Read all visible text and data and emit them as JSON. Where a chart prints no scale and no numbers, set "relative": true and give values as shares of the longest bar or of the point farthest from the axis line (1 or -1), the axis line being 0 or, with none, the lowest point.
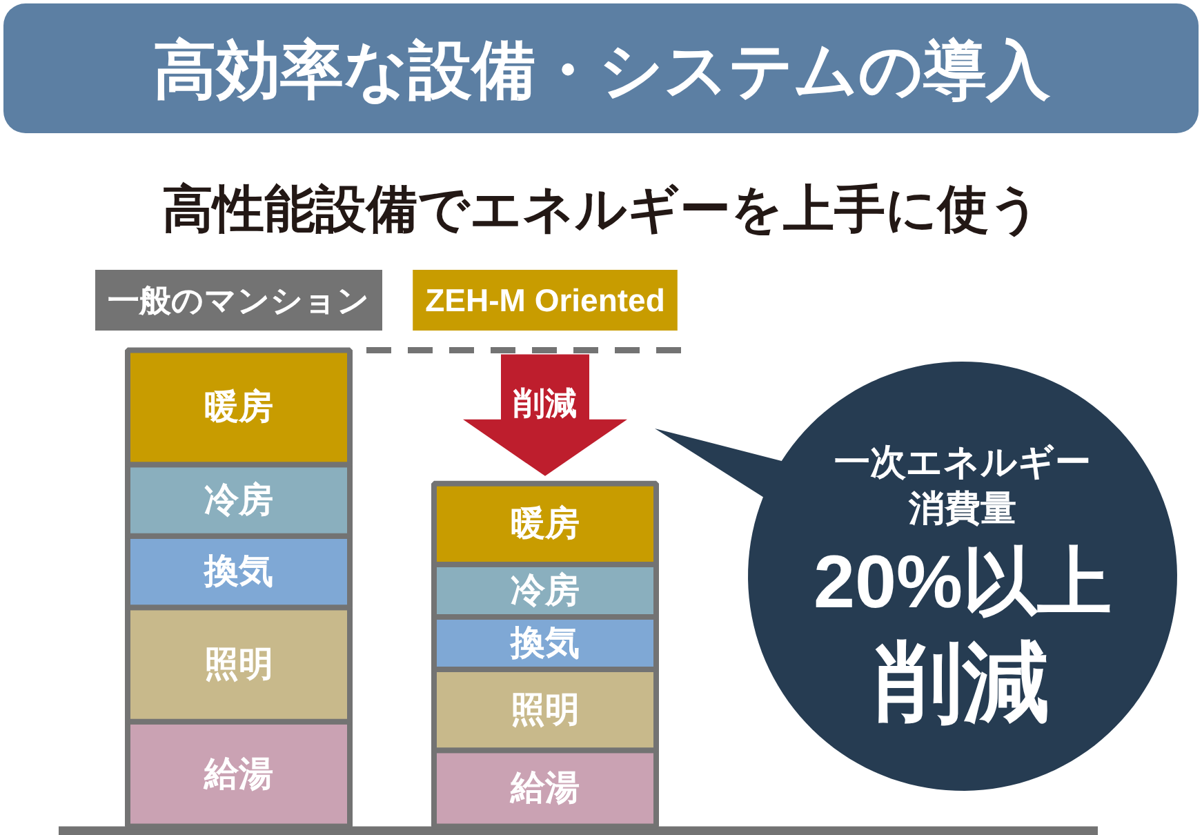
{
  "chart_data": {
    "type": "bar",
    "title": "高効率な設備・システムの導入",
    "subtitle": "高性能設備でエネルギーを上手に使う",
    "categories": [
      "一般のマンション",
      "ZEH-M Oriented"
    ],
    "stacked": true,
    "relative": true,
    "legend": false,
    "grid": false,
    "series": [
      {
        "name": "給湯",
        "color": "#caa2b3",
        "values": [
          0.22,
          0.16
        ]
      },
      {
        "name": "照明",
        "color": "#c8b98b",
        "values": [
          0.24,
          0.17
        ]
      },
      {
        "name": "換気",
        "color": "#7fa8d5",
        "values": [
          0.15,
          0.11
        ]
      },
      {
        "name": "冷房",
        "color": "#8aafbe",
        "values": [
          0.15,
          0.11
        ]
      },
      {
        "name": "暖房",
        "color": "#c89c00",
        "values": [
          0.24,
          0.17
        ]
      }
    ],
    "ref_lines": [
      {
        "axis": "y",
        "value": 1,
        "color": "#737373",
        "line_style": "dashed"
      }
    ],
    "annotations": [
      "削減",
      "一次エネルギー",
      "消費量",
      "20%以上",
      "削減"
    ]
  }
}
